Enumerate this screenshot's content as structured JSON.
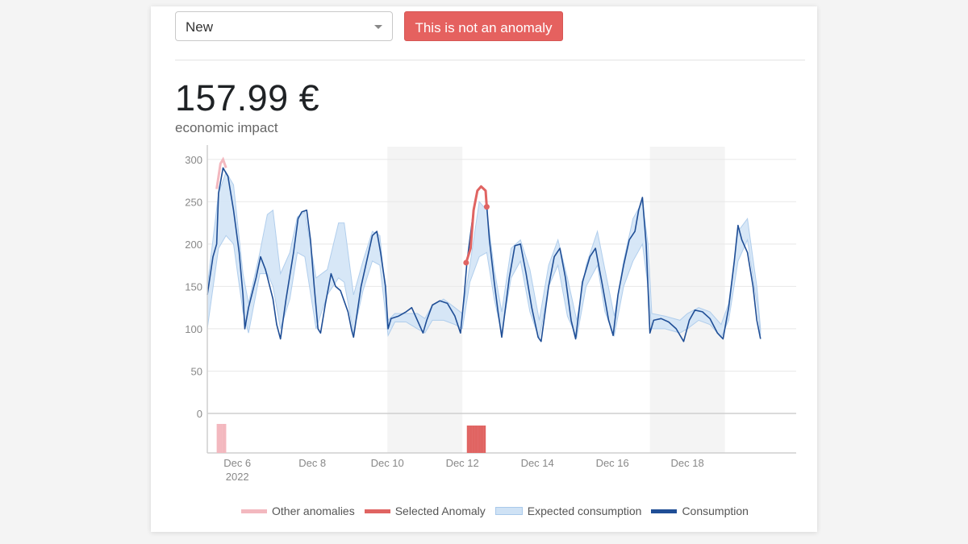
{
  "controls": {
    "status_value": "New",
    "anomaly_button": "This is not an anomaly"
  },
  "impact": {
    "value": "157.99 €",
    "label": "economic impact"
  },
  "colors": {
    "consumption": "#1f4e96",
    "expected_fill": "#d3e5f7",
    "expected_line": "#a9c9eb",
    "selected_anomaly": "#e06462",
    "other_anomalies": "#f3b8bf",
    "weekend_band": "#f4f4f4",
    "grid": "#e8e8e8",
    "axis": "#cfcfcf"
  },
  "legend": [
    {
      "name": "Other anomalies",
      "color": "#f3b8bf",
      "kind": "line"
    },
    {
      "name": "Selected Anomaly",
      "color": "#e06462",
      "kind": "line"
    },
    {
      "name": "Expected consumption",
      "color": "#cfe2f5",
      "kind": "band"
    },
    {
      "name": "Consumption",
      "color": "#1f4e96",
      "kind": "line"
    }
  ],
  "chart_data": {
    "type": "line",
    "ylim": [
      0,
      315
    ],
    "yticks": [
      0,
      50,
      100,
      150,
      200,
      250,
      300
    ],
    "xlim": [
      5.2,
      20.9
    ],
    "xticks": [
      {
        "day": 6,
        "label": "Dec 6",
        "sublabel": "2022"
      },
      {
        "day": 8,
        "label": "Dec 8",
        "sublabel": ""
      },
      {
        "day": 10,
        "label": "Dec 10",
        "sublabel": ""
      },
      {
        "day": 12,
        "label": "Dec 12",
        "sublabel": ""
      },
      {
        "day": 14,
        "label": "Dec 14",
        "sublabel": ""
      },
      {
        "day": 16,
        "label": "Dec 16",
        "sublabel": ""
      },
      {
        "day": 18,
        "label": "Dec 18",
        "sublabel": ""
      }
    ],
    "weekend_bands": [
      [
        10.0,
        12.0
      ],
      [
        17.0,
        19.0
      ]
    ],
    "series": [
      {
        "name": "Consumption",
        "points": [
          [
            5.2,
            140
          ],
          [
            5.35,
            185
          ],
          [
            5.45,
            200
          ],
          [
            5.5,
            260
          ],
          [
            5.62,
            290
          ],
          [
            5.75,
            280
          ],
          [
            5.9,
            240
          ],
          [
            6.05,
            190
          ],
          [
            6.15,
            140
          ],
          [
            6.2,
            100
          ],
          [
            6.3,
            125
          ],
          [
            6.5,
            160
          ],
          [
            6.62,
            185
          ],
          [
            6.75,
            170
          ],
          [
            6.95,
            135
          ],
          [
            7.05,
            105
          ],
          [
            7.15,
            88
          ],
          [
            7.3,
            135
          ],
          [
            7.5,
            190
          ],
          [
            7.62,
            230
          ],
          [
            7.72,
            238
          ],
          [
            7.85,
            240
          ],
          [
            7.95,
            205
          ],
          [
            8.05,
            150
          ],
          [
            8.15,
            100
          ],
          [
            8.22,
            95
          ],
          [
            8.35,
            130
          ],
          [
            8.5,
            165
          ],
          [
            8.62,
            150
          ],
          [
            8.75,
            145
          ],
          [
            8.95,
            120
          ],
          [
            9.05,
            98
          ],
          [
            9.1,
            90
          ],
          [
            9.3,
            150
          ],
          [
            9.45,
            180
          ],
          [
            9.6,
            210
          ],
          [
            9.72,
            215
          ],
          [
            9.82,
            190
          ],
          [
            9.95,
            150
          ],
          [
            10.02,
            100
          ],
          [
            10.1,
            112
          ],
          [
            10.3,
            115
          ],
          [
            10.5,
            120
          ],
          [
            10.65,
            125
          ],
          [
            10.8,
            110
          ],
          [
            10.95,
            95
          ],
          [
            11.05,
            110
          ],
          [
            11.2,
            128
          ],
          [
            11.4,
            133
          ],
          [
            11.6,
            130
          ],
          [
            11.8,
            115
          ],
          [
            11.95,
            95
          ],
          [
            12.05,
            140
          ],
          [
            12.12,
            178
          ],
          [
            12.3,
            240
          ],
          [
            12.4,
            263
          ],
          [
            12.5,
            268
          ],
          [
            12.62,
            263
          ],
          [
            12.72,
            205
          ],
          [
            12.85,
            155
          ],
          [
            12.95,
            120
          ],
          [
            13.05,
            90
          ],
          [
            13.25,
            160
          ],
          [
            13.4,
            198
          ],
          [
            13.55,
            200
          ],
          [
            13.7,
            165
          ],
          [
            13.85,
            125
          ],
          [
            14.02,
            90
          ],
          [
            14.1,
            85
          ],
          [
            14.3,
            150
          ],
          [
            14.45,
            185
          ],
          [
            14.6,
            195
          ],
          [
            14.75,
            160
          ],
          [
            14.9,
            110
          ],
          [
            15.02,
            88
          ],
          [
            15.2,
            155
          ],
          [
            15.4,
            185
          ],
          [
            15.55,
            195
          ],
          [
            15.72,
            155
          ],
          [
            15.9,
            110
          ],
          [
            16.02,
            92
          ],
          [
            16.15,
            140
          ],
          [
            16.3,
            175
          ],
          [
            16.45,
            205
          ],
          [
            16.6,
            215
          ],
          [
            16.7,
            240
          ],
          [
            16.8,
            255
          ],
          [
            16.9,
            200
          ],
          [
            17.0,
            95
          ],
          [
            17.1,
            110
          ],
          [
            17.3,
            112
          ],
          [
            17.5,
            108
          ],
          [
            17.7,
            100
          ],
          [
            17.9,
            85
          ],
          [
            18.05,
            110
          ],
          [
            18.2,
            122
          ],
          [
            18.4,
            120
          ],
          [
            18.6,
            112
          ],
          [
            18.8,
            95
          ],
          [
            18.95,
            88
          ],
          [
            19.1,
            125
          ],
          [
            19.25,
            180
          ],
          [
            19.35,
            222
          ],
          [
            19.45,
            205
          ],
          [
            19.6,
            190
          ],
          [
            19.75,
            150
          ],
          [
            19.85,
            110
          ],
          [
            19.95,
            88
          ]
        ]
      },
      {
        "name": "Expected consumption",
        "band": [
          [
            5.2,
            100,
            150
          ],
          [
            5.5,
            195,
            260
          ],
          [
            5.7,
            210,
            285
          ],
          [
            5.9,
            200,
            270
          ],
          [
            6.15,
            120,
            165
          ],
          [
            6.3,
            95,
            130
          ],
          [
            6.6,
            165,
            190
          ],
          [
            6.8,
            165,
            235
          ],
          [
            6.95,
            150,
            240
          ],
          [
            7.15,
            100,
            165
          ],
          [
            7.4,
            135,
            190
          ],
          [
            7.6,
            190,
            232
          ],
          [
            7.8,
            185,
            238
          ],
          [
            8.1,
            100,
            160
          ],
          [
            8.4,
            140,
            170
          ],
          [
            8.7,
            160,
            225
          ],
          [
            8.85,
            155,
            225
          ],
          [
            9.1,
            95,
            140
          ],
          [
            9.35,
            145,
            180
          ],
          [
            9.6,
            180,
            215
          ],
          [
            9.8,
            175,
            210
          ],
          [
            10.02,
            92,
            110
          ],
          [
            10.2,
            108,
            118
          ],
          [
            10.5,
            108,
            118
          ],
          [
            10.8,
            100,
            118
          ],
          [
            11.0,
            95,
            112
          ],
          [
            11.2,
            110,
            128
          ],
          [
            11.5,
            110,
            135
          ],
          [
            11.8,
            105,
            125
          ],
          [
            12.0,
            100,
            118
          ],
          [
            12.2,
            155,
            175
          ],
          [
            12.45,
            185,
            250
          ],
          [
            12.65,
            190,
            240
          ],
          [
            12.85,
            135,
            170
          ],
          [
            13.05,
            95,
            120
          ],
          [
            13.3,
            160,
            195
          ],
          [
            13.55,
            180,
            205
          ],
          [
            13.8,
            120,
            170
          ],
          [
            14.05,
            88,
            110
          ],
          [
            14.3,
            150,
            175
          ],
          [
            14.55,
            175,
            205
          ],
          [
            14.8,
            115,
            160
          ],
          [
            15.05,
            90,
            110
          ],
          [
            15.3,
            150,
            175
          ],
          [
            15.6,
            175,
            215
          ],
          [
            15.8,
            120,
            170
          ],
          [
            16.05,
            92,
            115
          ],
          [
            16.3,
            150,
            180
          ],
          [
            16.55,
            180,
            230
          ],
          [
            16.8,
            200,
            250
          ],
          [
            16.95,
            150,
            200
          ],
          [
            17.05,
            100,
            118
          ],
          [
            17.4,
            100,
            115
          ],
          [
            17.8,
            95,
            110
          ],
          [
            18.0,
            100,
            118
          ],
          [
            18.3,
            110,
            125
          ],
          [
            18.6,
            105,
            120
          ],
          [
            18.9,
            90,
            105
          ],
          [
            19.1,
            110,
            130
          ],
          [
            19.35,
            180,
            215
          ],
          [
            19.6,
            205,
            230
          ],
          [
            19.85,
            130,
            150
          ],
          [
            19.95,
            92,
            100
          ]
        ]
      },
      {
        "name": "Selected Anomaly",
        "points": [
          [
            12.1,
            178
          ],
          [
            12.22,
            195
          ],
          [
            12.3,
            240
          ],
          [
            12.4,
            263
          ],
          [
            12.5,
            268
          ],
          [
            12.62,
            263
          ],
          [
            12.65,
            244
          ]
        ]
      },
      {
        "name": "Other anomalies",
        "points": [
          [
            5.45,
            265
          ],
          [
            5.55,
            295
          ],
          [
            5.62,
            300
          ],
          [
            5.7,
            290
          ]
        ]
      }
    ],
    "anomaly_bars": {
      "other": [
        5.45,
        5.5,
        5.55,
        5.6,
        5.65
      ],
      "selected": [
        12.12,
        12.17,
        12.22,
        12.27,
        12.32,
        12.37,
        12.42,
        12.47,
        12.52,
        12.57
      ]
    }
  }
}
